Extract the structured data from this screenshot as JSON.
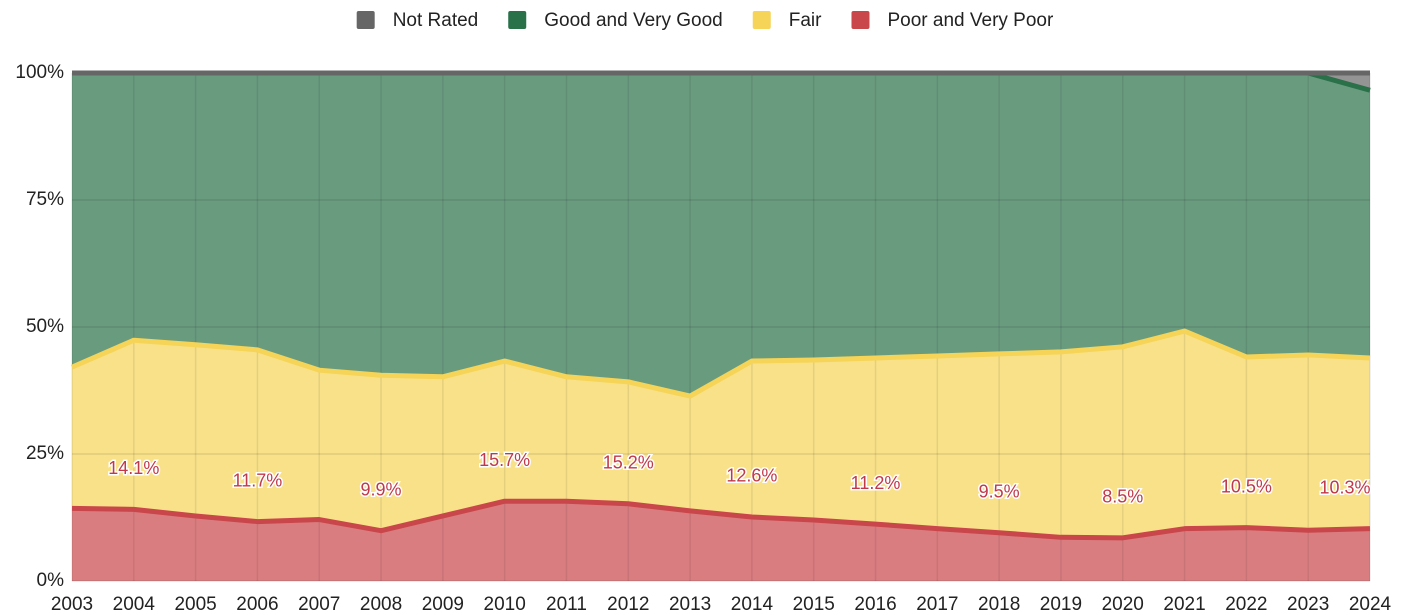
{
  "chart_data": {
    "type": "stacked-area",
    "categories": [
      "2003",
      "2004",
      "2005",
      "2006",
      "2007",
      "2008",
      "2009",
      "2010",
      "2011",
      "2012",
      "2013",
      "2014",
      "2015",
      "2016",
      "2017",
      "2018",
      "2019",
      "2020",
      "2021",
      "2022",
      "2023",
      "2024"
    ],
    "series": [
      {
        "name": "Poor and Very Poor",
        "color": "#c9464a",
        "values": [
          14.3,
          14.1,
          12.8,
          11.7,
          12.1,
          9.9,
          12.8,
          15.7,
          15.7,
          15.2,
          13.8,
          12.6,
          12.0,
          11.2,
          10.3,
          9.5,
          8.6,
          8.5,
          10.3,
          10.5,
          10.0,
          10.3
        ],
        "value_labels": [
          null,
          "14.1%",
          null,
          "11.7%",
          null,
          "9.9%",
          null,
          "15.7%",
          null,
          "15.2%",
          null,
          "12.6%",
          null,
          "11.2%",
          null,
          "9.5%",
          null,
          "8.5%",
          null,
          "10.5%",
          null,
          "10.3%"
        ]
      },
      {
        "name": "Fair",
        "color": "#f5d457",
        "values": [
          27.8,
          33.3,
          33.7,
          33.8,
          29.4,
          30.6,
          27.4,
          27.6,
          24.5,
          24.0,
          22.6,
          30.7,
          31.5,
          32.7,
          34.0,
          35.2,
          36.5,
          37.6,
          38.9,
          33.6,
          34.5,
          33.6
        ]
      },
      {
        "name": "Good and Very Good",
        "color": "#2a7049",
        "values": [
          57.9,
          52.6,
          53.5,
          54.5,
          58.5,
          59.5,
          59.8,
          56.7,
          59.8,
          60.8,
          63.6,
          56.7,
          56.5,
          56.1,
          55.7,
          55.3,
          54.9,
          53.9,
          50.8,
          55.9,
          55.5,
          52.7
        ]
      },
      {
        "name": "Not Rated",
        "color": "#666666",
        "values": [
          0,
          0,
          0,
          0,
          0,
          0,
          0,
          0,
          0,
          0,
          0,
          0,
          0,
          0,
          0,
          0,
          0,
          0,
          0,
          0,
          0,
          3.4
        ]
      }
    ],
    "ylim": [
      0,
      100
    ],
    "yticks": [
      {
        "value": 0,
        "label": "0%"
      },
      {
        "value": 25,
        "label": "25%"
      },
      {
        "value": 50,
        "label": "50%"
      },
      {
        "value": 75,
        "label": "75%"
      },
      {
        "value": 100,
        "label": "100%"
      }
    ],
    "grid": true,
    "legend": "top"
  }
}
